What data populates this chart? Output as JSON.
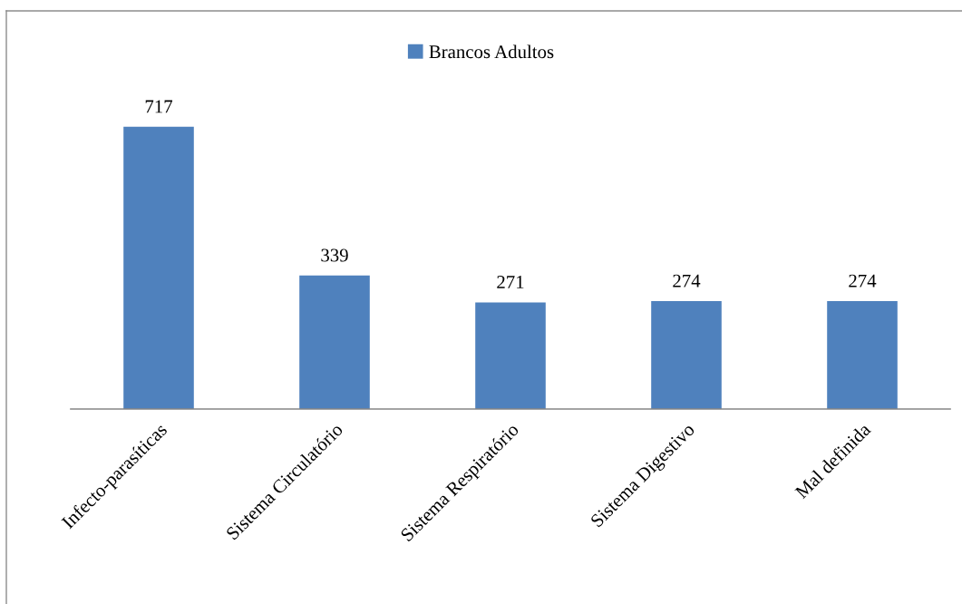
{
  "chart_data": {
    "type": "bar",
    "categories": [
      "Infecto-parasíticas",
      "Sistema Circulatório",
      "Sistema Respiratório",
      "Sistema Digestivo",
      "Mal definida"
    ],
    "series": [
      {
        "name": "Brancos Adultos",
        "color": "#4f81bd",
        "values": [
          717,
          339,
          271,
          274,
          274
        ]
      }
    ],
    "data_labels": true,
    "legend": "top",
    "tick_labels": "x"
  }
}
